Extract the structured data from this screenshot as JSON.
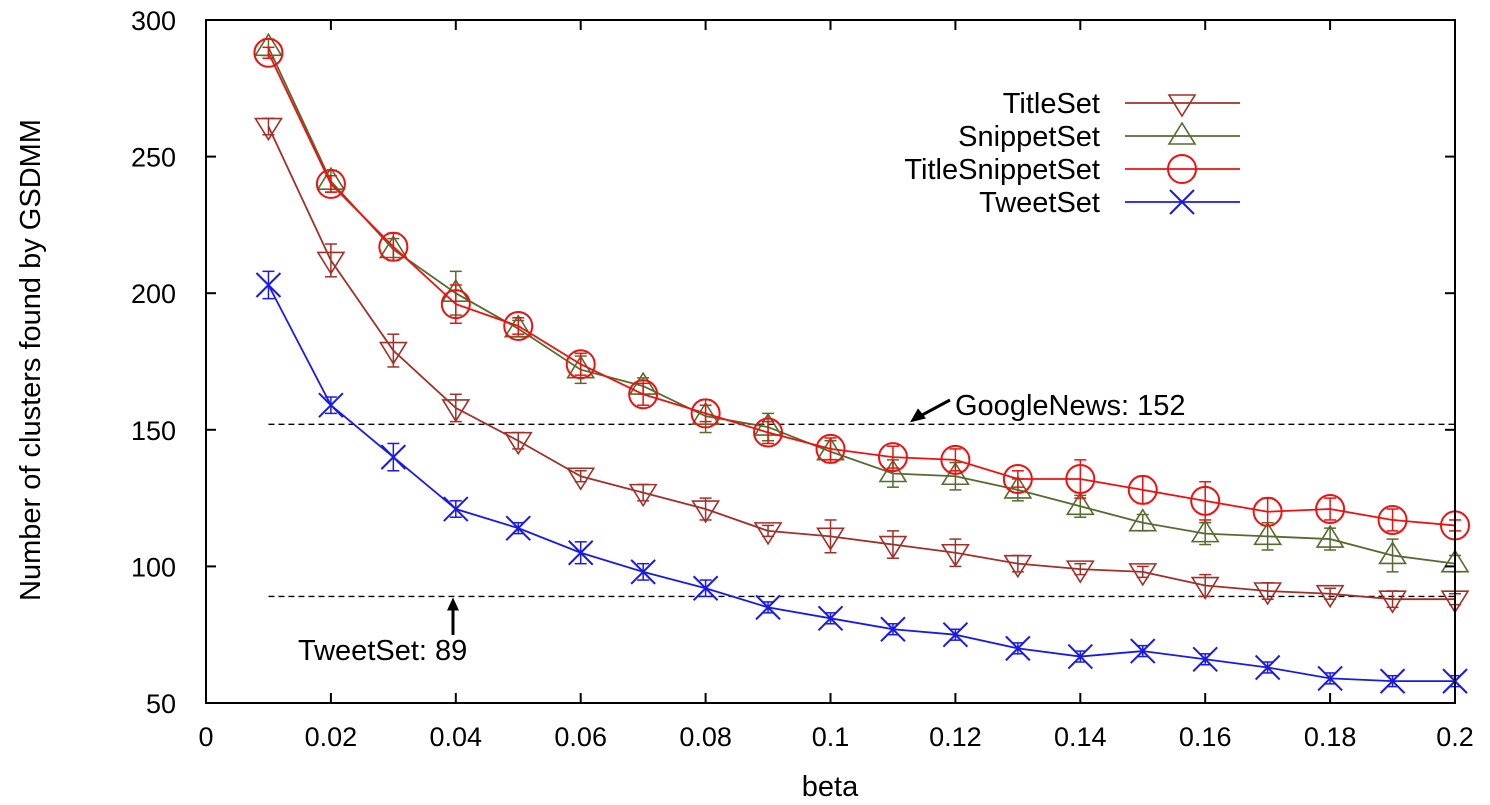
{
  "chart_data": {
    "type": "line",
    "title": "",
    "xlabel": "beta",
    "ylabel": "Number of clusters found by GSDMM",
    "xlim": [
      0,
      0.2
    ],
    "ylim": [
      50,
      300
    ],
    "x_ticks": [
      "0",
      "0.02",
      "0.04",
      "0.06",
      "0.08",
      "0.1",
      "0.12",
      "0.14",
      "0.16",
      "0.18",
      "0.2"
    ],
    "y_ticks": [
      "50",
      "100",
      "150",
      "200",
      "250",
      "300"
    ],
    "x": [
      0.01,
      0.02,
      0.03,
      0.04,
      0.05,
      0.06,
      0.07,
      0.08,
      0.09,
      0.1,
      0.11,
      0.12,
      0.13,
      0.14,
      0.15,
      0.16,
      0.17,
      0.18,
      0.19,
      0.2
    ],
    "legend_position": "top-right",
    "series": [
      {
        "name": "TitleSet",
        "color": "#a0302a",
        "marker": "triangle-down",
        "values": [
          261,
          212,
          179,
          158,
          146,
          133,
          127,
          121,
          113,
          111,
          108,
          105,
          101,
          99,
          98,
          93,
          91,
          90,
          88,
          88
        ],
        "errors": [
          3,
          6,
          6,
          5,
          3,
          2,
          3,
          4,
          2,
          6,
          5,
          5,
          3,
          2,
          2,
          4,
          3,
          2,
          3,
          2
        ]
      },
      {
        "name": "SnippetSet",
        "color": "#556b2f",
        "marker": "triangle-up",
        "values": [
          290,
          241,
          216,
          200,
          187,
          172,
          166,
          155,
          151,
          142,
          134,
          133,
          128,
          122,
          116,
          112,
          111,
          110,
          104,
          101
        ],
        "errors": [
          3,
          4,
          4,
          8,
          3,
          5,
          3,
          6,
          5,
          4,
          5,
          5,
          4,
          4,
          3,
          4,
          5,
          4,
          6,
          3
        ]
      },
      {
        "name": "TitleSnippetSet",
        "color": "#ee1111",
        "marker": "circle",
        "values": [
          288,
          240,
          217,
          196,
          188,
          174,
          163,
          156,
          149,
          143,
          140,
          139,
          132,
          132,
          128,
          124,
          120,
          121,
          117,
          115
        ],
        "errors": [
          2,
          3,
          5,
          7,
          3,
          4,
          4,
          3,
          4,
          4,
          4,
          4,
          3,
          7,
          5,
          7,
          5,
          4,
          4,
          2
        ]
      },
      {
        "name": "TweetSet",
        "color": "#1a1ae6",
        "marker": "x",
        "values": [
          203,
          159,
          140,
          121,
          114,
          105,
          98,
          92,
          85,
          81,
          77,
          75,
          70,
          67,
          69,
          66,
          63,
          59,
          58,
          58
        ],
        "errors": [
          5,
          3,
          5,
          3,
          2,
          4,
          3,
          3,
          2,
          2,
          2,
          2,
          2,
          2,
          2,
          2,
          2,
          2,
          2,
          2
        ]
      }
    ],
    "reference_lines": [
      {
        "label": "GoogleNews: 152",
        "value": 152
      },
      {
        "label": "TweetSet: 89",
        "value": 89
      }
    ]
  }
}
